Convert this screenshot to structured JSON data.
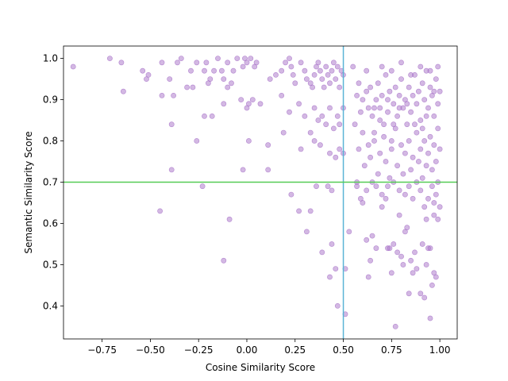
{
  "chart_data": {
    "type": "scatter",
    "title": "",
    "xlabel": "Cosine Similarity Score",
    "ylabel": "Semantic Similarity Score",
    "xlim": [
      -0.95,
      1.09
    ],
    "ylim": [
      0.32,
      1.03
    ],
    "xticks": [
      -0.75,
      -0.5,
      -0.25,
      0.0,
      0.25,
      0.5,
      0.75,
      1.0
    ],
    "xtick_labels": [
      "−0.75",
      "−0.50",
      "−0.25",
      "0.00",
      "0.25",
      "0.50",
      "0.75",
      "1.00"
    ],
    "yticks": [
      0.4,
      0.5,
      0.6,
      0.7,
      0.8,
      0.9,
      1.0
    ],
    "ytick_labels": [
      "0.4",
      "0.5",
      "0.6",
      "0.7",
      "0.8",
      "0.9",
      "1.0"
    ],
    "grid": false,
    "legend": "none",
    "reference_lines": [
      {
        "orientation": "vertical",
        "value": 0.5,
        "color": "#5ab4d6"
      },
      {
        "orientation": "horizontal",
        "value": 0.7,
        "color": "#55cc55"
      }
    ],
    "point_color": "#a872c8",
    "point_opacity": 0.5,
    "points": [
      [
        -0.9,
        0.98
      ],
      [
        -0.71,
        1.0
      ],
      [
        -0.65,
        0.99
      ],
      [
        -0.54,
        0.97
      ],
      [
        -0.52,
        0.95
      ],
      [
        -0.51,
        0.96
      ],
      [
        -0.64,
        0.92
      ],
      [
        -0.44,
        0.99
      ],
      [
        -0.44,
        0.91
      ],
      [
        -0.4,
        0.95
      ],
      [
        -0.38,
        0.91
      ],
      [
        -0.36,
        0.99
      ],
      [
        -0.34,
        1.0
      ],
      [
        -0.31,
        0.93
      ],
      [
        -0.29,
        0.97
      ],
      [
        -0.28,
        0.93
      ],
      [
        -0.26,
        0.99
      ],
      [
        -0.22,
        0.97
      ],
      [
        -0.21,
        0.99
      ],
      [
        -0.2,
        0.94
      ],
      [
        -0.19,
        0.95
      ],
      [
        -0.17,
        0.97
      ],
      [
        -0.15,
        1.0
      ],
      [
        -0.13,
        0.97
      ],
      [
        -0.12,
        0.95
      ],
      [
        -0.1,
        0.99
      ],
      [
        -0.1,
        0.93
      ],
      [
        -0.08,
        0.94
      ],
      [
        -0.07,
        0.97
      ],
      [
        -0.05,
        1.0
      ],
      [
        -0.02,
        0.98
      ],
      [
        -0.01,
        1.0
      ],
      [
        0.0,
        0.99
      ],
      [
        0.02,
        1.0
      ],
      [
        0.04,
        0.98
      ],
      [
        0.05,
        0.99
      ],
      [
        -0.03,
        0.9
      ],
      [
        0.0,
        0.88
      ],
      [
        0.01,
        0.89
      ],
      [
        0.03,
        0.9
      ],
      [
        0.07,
        0.89
      ],
      [
        0.12,
        0.95
      ],
      [
        0.15,
        0.96
      ],
      [
        0.18,
        0.97
      ],
      [
        0.2,
        0.99
      ],
      [
        0.22,
        1.0
      ],
      [
        0.23,
        0.98
      ],
      [
        0.24,
        0.96
      ],
      [
        0.25,
        0.94
      ],
      [
        0.28,
        0.99
      ],
      [
        0.3,
        0.97
      ],
      [
        0.31,
        0.95
      ],
      [
        0.33,
        0.94
      ],
      [
        0.34,
        0.93
      ],
      [
        0.35,
        0.96
      ],
      [
        0.36,
        0.98
      ],
      [
        0.37,
        0.99
      ],
      [
        0.38,
        0.97
      ],
      [
        0.39,
        0.95
      ],
      [
        0.4,
        0.93
      ],
      [
        0.41,
        0.98
      ],
      [
        0.42,
        0.96
      ],
      [
        0.43,
        0.94
      ],
      [
        0.44,
        0.97
      ],
      [
        0.45,
        0.99
      ],
      [
        0.46,
        0.95
      ],
      [
        0.47,
        0.98
      ],
      [
        0.48,
        0.93
      ],
      [
        0.49,
        0.97
      ],
      [
        0.5,
        0.96
      ],
      [
        0.18,
        0.91
      ],
      [
        0.22,
        0.87
      ],
      [
        0.27,
        0.89
      ],
      [
        0.3,
        0.86
      ],
      [
        0.33,
        0.82
      ],
      [
        0.35,
        0.88
      ],
      [
        0.37,
        0.85
      ],
      [
        0.39,
        0.86
      ],
      [
        0.41,
        0.84
      ],
      [
        0.43,
        0.88
      ],
      [
        0.45,
        0.83
      ],
      [
        0.47,
        0.86
      ],
      [
        0.48,
        0.84
      ],
      [
        0.5,
        0.88
      ],
      [
        -0.39,
        0.84
      ],
      [
        -0.22,
        0.86
      ],
      [
        -0.18,
        0.86
      ],
      [
        -0.12,
        0.89
      ],
      [
        0.01,
        0.8
      ],
      [
        0.11,
        0.79
      ],
      [
        0.19,
        0.82
      ],
      [
        0.28,
        0.78
      ],
      [
        0.35,
        0.8
      ],
      [
        0.38,
        0.79
      ],
      [
        0.43,
        0.77
      ],
      [
        0.46,
        0.76
      ],
      [
        0.48,
        0.78
      ],
      [
        0.5,
        0.77
      ],
      [
        -0.26,
        0.8
      ],
      [
        -0.39,
        0.73
      ],
      [
        -0.02,
        0.73
      ],
      [
        0.11,
        0.73
      ],
      [
        0.36,
        0.69
      ],
      [
        0.42,
        0.69
      ],
      [
        0.44,
        0.68
      ],
      [
        -0.23,
        0.69
      ],
      [
        0.23,
        0.67
      ],
      [
        -0.45,
        0.63
      ],
      [
        -0.09,
        0.61
      ],
      [
        0.27,
        0.63
      ],
      [
        0.33,
        0.63
      ],
      [
        0.31,
        0.58
      ],
      [
        0.39,
        0.53
      ],
      [
        0.44,
        0.55
      ],
      [
        0.46,
        0.49
      ],
      [
        0.43,
        0.47
      ],
      [
        -0.12,
        0.51
      ],
      [
        0.47,
        0.4
      ],
      [
        0.53,
        0.58
      ],
      [
        0.51,
        0.49
      ],
      [
        0.51,
        0.38
      ],
      [
        0.57,
        0.69
      ],
      [
        0.6,
        0.65
      ],
      [
        0.62,
        0.56
      ],
      [
        0.63,
        0.47
      ],
      [
        0.64,
        0.51
      ],
      [
        0.65,
        0.57
      ],
      [
        0.67,
        0.54
      ],
      [
        0.7,
        0.64
      ],
      [
        0.72,
        0.66
      ],
      [
        0.73,
        0.54
      ],
      [
        0.74,
        0.54
      ],
      [
        0.75,
        0.48
      ],
      [
        0.76,
        0.55
      ],
      [
        0.77,
        0.35
      ],
      [
        0.78,
        0.53
      ],
      [
        0.79,
        0.62
      ],
      [
        0.8,
        0.52
      ],
      [
        0.81,
        0.5
      ],
      [
        0.82,
        0.58
      ],
      [
        0.83,
        0.59
      ],
      [
        0.84,
        0.43
      ],
      [
        0.85,
        0.51
      ],
      [
        0.86,
        0.48
      ],
      [
        0.87,
        0.53
      ],
      [
        0.88,
        0.49
      ],
      [
        0.9,
        0.43
      ],
      [
        0.91,
        0.55
      ],
      [
        0.92,
        0.42
      ],
      [
        0.93,
        0.5
      ],
      [
        0.94,
        0.54
      ],
      [
        0.95,
        0.54
      ],
      [
        0.96,
        0.45
      ],
      [
        0.97,
        0.48
      ],
      [
        0.95,
        0.37
      ],
      [
        0.98,
        0.47
      ],
      [
        0.93,
        0.61
      ],
      [
        0.97,
        0.62
      ],
      [
        0.99,
        0.61
      ],
      [
        0.55,
        0.98
      ],
      [
        0.58,
        0.94
      ],
      [
        0.6,
        0.9
      ],
      [
        0.62,
        0.97
      ],
      [
        0.63,
        0.88
      ],
      [
        0.64,
        0.93
      ],
      [
        0.65,
        0.86
      ],
      [
        0.66,
        0.82
      ],
      [
        0.67,
        0.9
      ],
      [
        0.68,
        0.94
      ],
      [
        0.69,
        0.88
      ],
      [
        0.7,
        0.91
      ],
      [
        0.71,
        0.84
      ],
      [
        0.72,
        0.96
      ],
      [
        0.73,
        0.87
      ],
      [
        0.74,
        0.92
      ],
      [
        0.75,
        0.8
      ],
      [
        0.76,
        0.89
      ],
      [
        0.77,
        0.93
      ],
      [
        0.78,
        0.86
      ],
      [
        0.79,
        0.91
      ],
      [
        0.8,
        0.95
      ],
      [
        0.81,
        0.88
      ],
      [
        0.82,
        0.9
      ],
      [
        0.83,
        0.84
      ],
      [
        0.84,
        0.93
      ],
      [
        0.85,
        0.87
      ],
      [
        0.86,
        0.91
      ],
      [
        0.87,
        0.96
      ],
      [
        0.88,
        0.89
      ],
      [
        0.89,
        0.92
      ],
      [
        0.9,
        0.85
      ],
      [
        0.91,
        0.94
      ],
      [
        0.92,
        0.9
      ],
      [
        0.93,
        0.97
      ],
      [
        0.94,
        0.88
      ],
      [
        0.95,
        0.93
      ],
      [
        0.96,
        0.91
      ],
      [
        0.97,
        0.86
      ],
      [
        0.98,
        0.95
      ],
      [
        0.99,
        0.89
      ],
      [
        1.0,
        0.92
      ],
      [
        0.56,
        0.84
      ],
      [
        0.58,
        0.78
      ],
      [
        0.6,
        0.82
      ],
      [
        0.61,
        0.74
      ],
      [
        0.63,
        0.79
      ],
      [
        0.64,
        0.76
      ],
      [
        0.66,
        0.8
      ],
      [
        0.68,
        0.72
      ],
      [
        0.69,
        0.77
      ],
      [
        0.71,
        0.81
      ],
      [
        0.72,
        0.75
      ],
      [
        0.74,
        0.71
      ],
      [
        0.75,
        0.78
      ],
      [
        0.77,
        0.83
      ],
      [
        0.78,
        0.74
      ],
      [
        0.8,
        0.79
      ],
      [
        0.81,
        0.72
      ],
      [
        0.82,
        0.77
      ],
      [
        0.84,
        0.8
      ],
      [
        0.85,
        0.73
      ],
      [
        0.86,
        0.76
      ],
      [
        0.88,
        0.82
      ],
      [
        0.89,
        0.75
      ],
      [
        0.9,
        0.78
      ],
      [
        0.91,
        0.71
      ],
      [
        0.92,
        0.8
      ],
      [
        0.93,
        0.74
      ],
      [
        0.94,
        0.77
      ],
      [
        0.95,
        0.81
      ],
      [
        0.96,
        0.73
      ],
      [
        0.97,
        0.79
      ],
      [
        0.98,
        0.75
      ],
      [
        0.99,
        0.83
      ],
      [
        1.0,
        0.78
      ],
      [
        0.57,
        0.7
      ],
      [
        0.59,
        0.66
      ],
      [
        0.62,
        0.68
      ],
      [
        0.65,
        0.7
      ],
      [
        0.67,
        0.69
      ],
      [
        0.7,
        0.67
      ],
      [
        0.73,
        0.69
      ],
      [
        0.76,
        0.7
      ],
      [
        0.79,
        0.68
      ],
      [
        0.82,
        0.67
      ],
      [
        0.84,
        0.69
      ],
      [
        0.86,
        0.66
      ],
      [
        0.88,
        0.7
      ],
      [
        0.9,
        0.68
      ],
      [
        0.92,
        0.64
      ],
      [
        0.94,
        0.66
      ],
      [
        0.96,
        0.69
      ],
      [
        0.97,
        0.65
      ],
      [
        0.98,
        0.67
      ],
      [
        0.99,
        0.7
      ],
      [
        1.0,
        0.64
      ],
      [
        0.7,
        0.98
      ],
      [
        0.75,
        0.97
      ],
      [
        0.8,
        0.99
      ],
      [
        0.85,
        0.96
      ],
      [
        0.9,
        0.98
      ],
      [
        0.95,
        0.97
      ],
      [
        0.99,
        0.98
      ],
      [
        0.97,
        0.92
      ],
      [
        0.93,
        0.86
      ],
      [
        0.91,
        0.83
      ],
      [
        0.87,
        0.84
      ],
      [
        0.83,
        0.89
      ],
      [
        0.79,
        0.88
      ],
      [
        0.76,
        0.84
      ],
      [
        0.73,
        0.9
      ],
      [
        0.69,
        0.85
      ],
      [
        0.66,
        0.88
      ],
      [
        0.62,
        0.92
      ],
      [
        0.59,
        0.87
      ],
      [
        0.57,
        0.91
      ]
    ]
  }
}
